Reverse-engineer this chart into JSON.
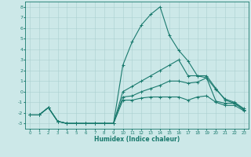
{
  "xlabel": "Humidex (Indice chaleur)",
  "bg_color": "#cce8e8",
  "line_color": "#1a7a6e",
  "grid_color": "#aacfcf",
  "xlim": [
    -0.5,
    23.5
  ],
  "ylim": [
    -3.5,
    8.5
  ],
  "yticks": [
    -3,
    -2,
    -1,
    0,
    1,
    2,
    3,
    4,
    5,
    6,
    7,
    8
  ],
  "xticks": [
    0,
    1,
    2,
    3,
    4,
    5,
    6,
    7,
    8,
    9,
    10,
    11,
    12,
    13,
    14,
    15,
    16,
    17,
    18,
    19,
    20,
    21,
    22,
    23
  ],
  "line1_x": [
    0,
    1,
    2,
    3,
    4,
    5,
    6,
    7,
    8,
    9,
    10,
    11,
    12,
    13,
    14,
    15,
    16,
    17,
    18,
    19,
    20,
    21,
    22,
    23
  ],
  "line1_y": [
    -2.2,
    -2.2,
    -1.5,
    -2.8,
    -3.0,
    -3.0,
    -3.0,
    -3.0,
    -3.0,
    -3.0,
    -0.8,
    -0.8,
    -0.6,
    -0.5,
    -0.5,
    -0.5,
    -0.5,
    -0.8,
    -0.5,
    -0.4,
    -1.0,
    -1.3,
    -1.3,
    -1.8
  ],
  "line2_x": [
    0,
    1,
    2,
    3,
    4,
    5,
    6,
    7,
    8,
    9,
    10,
    11,
    12,
    13,
    14,
    15,
    16,
    17,
    18,
    19,
    20,
    21,
    22,
    23
  ],
  "line2_y": [
    -2.2,
    -2.2,
    -1.5,
    -2.8,
    -3.0,
    -3.0,
    -3.0,
    -3.0,
    -3.0,
    -3.0,
    -0.5,
    -0.4,
    0.0,
    0.3,
    0.6,
    1.0,
    1.0,
    0.8,
    0.9,
    1.3,
    0.2,
    -0.7,
    -1.0,
    -1.6
  ],
  "line3_x": [
    0,
    1,
    2,
    3,
    4,
    5,
    6,
    7,
    8,
    9,
    10,
    11,
    12,
    13,
    14,
    15,
    16,
    17,
    18,
    19,
    20,
    21,
    22,
    23
  ],
  "line3_y": [
    -2.2,
    -2.2,
    -1.5,
    -2.8,
    -3.0,
    -3.0,
    -3.0,
    -3.0,
    -3.0,
    -3.0,
    0.0,
    0.5,
    1.0,
    1.5,
    2.0,
    2.5,
    3.0,
    1.5,
    1.5,
    1.5,
    0.3,
    -0.8,
    -1.1,
    -1.7
  ],
  "line4_x": [
    0,
    1,
    2,
    3,
    4,
    5,
    6,
    7,
    8,
    9,
    10,
    11,
    12,
    13,
    14,
    15,
    16,
    17,
    18,
    19,
    20,
    21,
    22,
    23
  ],
  "line4_y": [
    -2.2,
    -2.2,
    -1.5,
    -2.8,
    -3.0,
    -3.0,
    -3.0,
    -3.0,
    -3.0,
    -3.0,
    2.5,
    4.7,
    6.3,
    7.3,
    8.0,
    5.3,
    3.9,
    2.9,
    1.5,
    1.3,
    -0.9,
    -1.1,
    -1.1,
    -1.7
  ],
  "marker": "+"
}
